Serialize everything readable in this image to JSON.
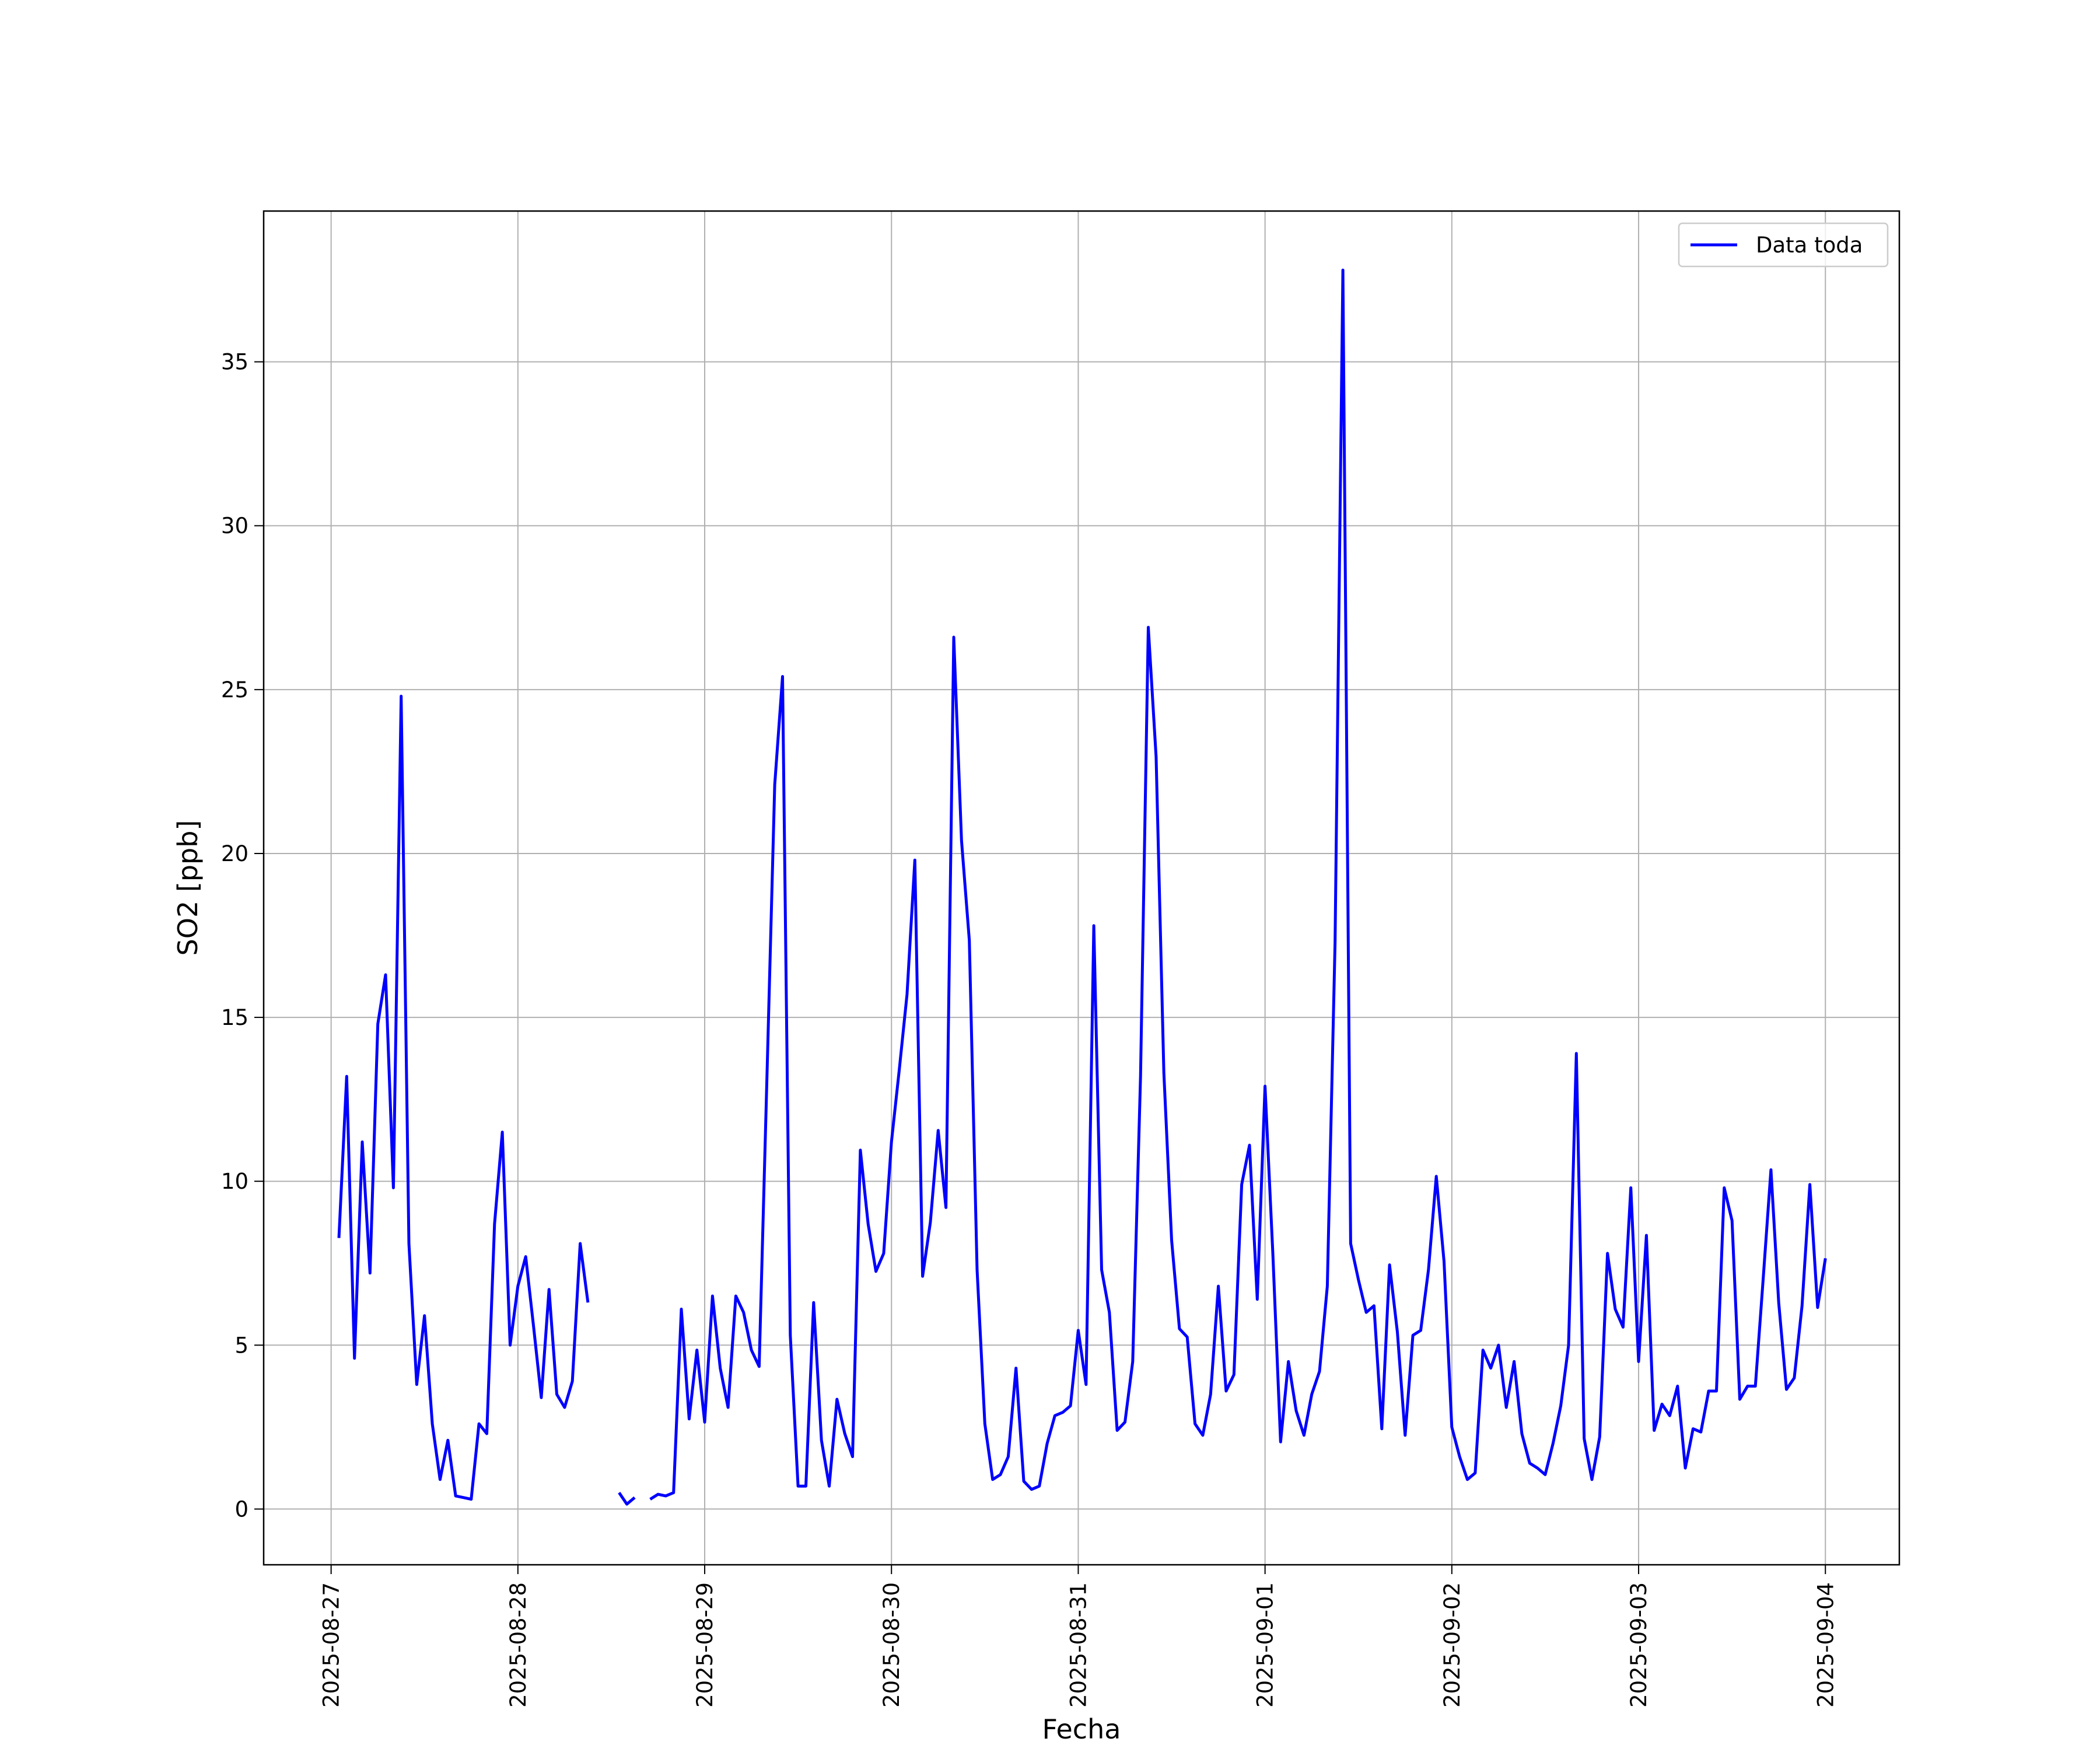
{
  "chart_data": {
    "type": "line",
    "title": "",
    "xlabel": "Fecha",
    "ylabel": "SO2 [ppb]",
    "xlim": [
      "2025-08-26T15:20",
      "2025-09-04T09:30"
    ],
    "ylim": [
      -1.7,
      39.6
    ],
    "grid": true,
    "legend_position": "top-right",
    "x_ticks": [
      "2025-08-27",
      "2025-08-28",
      "2025-08-29",
      "2025-08-30",
      "2025-08-31",
      "2025-09-01",
      "2025-09-02",
      "2025-09-03",
      "2025-09-04"
    ],
    "y_ticks": [
      0,
      5,
      10,
      15,
      20,
      25,
      30,
      35
    ],
    "series": [
      {
        "name": "Data toda",
        "color": "#0000ff",
        "x": [
          "2025-08-27T01:00",
          "2025-08-27T02:00",
          "2025-08-27T03:00",
          "2025-08-27T04:00",
          "2025-08-27T05:00",
          "2025-08-27T06:00",
          "2025-08-27T07:00",
          "2025-08-27T08:00",
          "2025-08-27T09:00",
          "2025-08-27T10:00",
          "2025-08-27T11:00",
          "2025-08-27T12:00",
          "2025-08-27T13:00",
          "2025-08-27T14:00",
          "2025-08-27T15:00",
          "2025-08-27T16:00",
          "2025-08-27T17:00",
          "2025-08-27T18:00",
          "2025-08-27T19:00",
          "2025-08-27T20:00",
          "2025-08-27T21:00",
          "2025-08-27T22:00",
          "2025-08-27T23:00",
          "2025-08-28T00:00",
          "2025-08-28T01:00",
          "2025-08-28T02:00",
          "2025-08-28T03:00",
          "2025-08-28T04:00",
          "2025-08-28T05:00",
          "2025-08-28T06:00",
          "2025-08-28T07:00",
          "2025-08-28T08:00",
          "2025-08-28T09:00",
          "2025-08-28T10:00",
          "2025-08-28T11:00",
          "2025-08-28T12:00",
          "2025-08-28T13:00",
          "2025-08-28T14:00",
          "2025-08-28T15:00",
          "2025-08-28T16:00",
          "2025-08-28T17:00",
          "2025-08-28T18:00",
          "2025-08-28T19:00",
          "2025-08-28T20:00",
          "2025-08-28T21:00",
          "2025-08-28T22:00",
          "2025-08-28T23:00",
          "2025-08-29T00:00",
          "2025-08-29T01:00",
          "2025-08-29T02:00",
          "2025-08-29T03:00",
          "2025-08-29T04:00",
          "2025-08-29T05:00",
          "2025-08-29T06:00",
          "2025-08-29T07:00",
          "2025-08-29T08:00",
          "2025-08-29T09:00",
          "2025-08-29T10:00",
          "2025-08-29T11:00",
          "2025-08-29T12:00",
          "2025-08-29T13:00",
          "2025-08-29T14:00",
          "2025-08-29T15:00",
          "2025-08-29T16:00",
          "2025-08-29T17:00",
          "2025-08-29T18:00",
          "2025-08-29T19:00",
          "2025-08-29T20:00",
          "2025-08-29T21:00",
          "2025-08-29T22:00",
          "2025-08-29T23:00",
          "2025-08-30T00:00",
          "2025-08-30T01:00",
          "2025-08-30T02:00",
          "2025-08-30T03:00",
          "2025-08-30T04:00",
          "2025-08-30T05:00",
          "2025-08-30T06:00",
          "2025-08-30T07:00",
          "2025-08-30T08:00",
          "2025-08-30T09:00",
          "2025-08-30T10:00",
          "2025-08-30T11:00",
          "2025-08-30T12:00",
          "2025-08-30T13:00",
          "2025-08-30T14:00",
          "2025-08-30T15:00",
          "2025-08-30T16:00",
          "2025-08-30T17:00",
          "2025-08-30T18:00",
          "2025-08-30T19:00",
          "2025-08-30T20:00",
          "2025-08-30T21:00",
          "2025-08-30T22:00",
          "2025-08-30T23:00",
          "2025-08-31T00:00",
          "2025-08-31T01:00",
          "2025-08-31T02:00",
          "2025-08-31T03:00",
          "2025-08-31T04:00",
          "2025-08-31T05:00",
          "2025-08-31T06:00",
          "2025-08-31T07:00",
          "2025-08-31T08:00",
          "2025-08-31T09:00",
          "2025-08-31T10:00",
          "2025-08-31T11:00",
          "2025-08-31T12:00",
          "2025-08-31T13:00",
          "2025-08-31T14:00",
          "2025-08-31T15:00",
          "2025-08-31T16:00",
          "2025-08-31T17:00",
          "2025-08-31T18:00",
          "2025-08-31T19:00",
          "2025-08-31T20:00",
          "2025-08-31T21:00",
          "2025-08-31T22:00",
          "2025-08-31T23:00",
          "2025-09-01T00:00",
          "2025-09-01T01:00",
          "2025-09-01T02:00",
          "2025-09-01T03:00",
          "2025-09-01T04:00",
          "2025-09-01T05:00",
          "2025-09-01T06:00",
          "2025-09-01T07:00",
          "2025-09-01T08:00",
          "2025-09-01T09:00",
          "2025-09-01T10:00",
          "2025-09-01T11:00",
          "2025-09-01T12:00",
          "2025-09-01T13:00",
          "2025-09-01T14:00",
          "2025-09-01T15:00",
          "2025-09-01T16:00",
          "2025-09-01T17:00",
          "2025-09-01T18:00",
          "2025-09-01T19:00",
          "2025-09-01T20:00",
          "2025-09-01T21:00",
          "2025-09-01T22:00",
          "2025-09-01T23:00",
          "2025-09-02T00:00",
          "2025-09-02T01:00",
          "2025-09-02T02:00",
          "2025-09-02T03:00",
          "2025-09-02T04:00",
          "2025-09-02T05:00",
          "2025-09-02T06:00",
          "2025-09-02T07:00",
          "2025-09-02T08:00",
          "2025-09-02T09:00",
          "2025-09-02T10:00",
          "2025-09-02T11:00",
          "2025-09-02T12:00",
          "2025-09-02T13:00",
          "2025-09-02T14:00",
          "2025-09-02T15:00",
          "2025-09-02T16:00",
          "2025-09-02T17:00",
          "2025-09-02T18:00",
          "2025-09-02T19:00",
          "2025-09-02T20:00",
          "2025-09-02T21:00",
          "2025-09-02T22:00",
          "2025-09-02T23:00",
          "2025-09-03T00:00",
          "2025-09-03T01:00",
          "2025-09-03T02:00",
          "2025-09-03T03:00",
          "2025-09-03T04:00",
          "2025-09-03T05:00",
          "2025-09-03T06:00",
          "2025-09-03T07:00",
          "2025-09-03T08:00",
          "2025-09-03T09:00",
          "2025-09-03T10:00",
          "2025-09-03T11:00",
          "2025-09-03T12:00",
          "2025-09-03T13:00",
          "2025-09-03T14:00",
          "2025-09-03T15:00",
          "2025-09-03T16:00",
          "2025-09-03T17:00",
          "2025-09-03T18:00",
          "2025-09-03T19:00",
          "2025-09-03T20:00",
          "2025-09-03T21:00",
          "2025-09-03T22:00",
          "2025-09-03T23:00",
          "2025-09-04T00:00"
        ],
        "y": [
          8.27,
          13.2,
          4.6,
          11.2,
          7.2,
          14.8,
          16.3,
          9.8,
          24.8,
          8.1,
          3.8,
          5.9,
          2.6,
          0.9,
          2.1,
          0.4,
          0.35,
          0.3,
          2.6,
          2.3,
          8.7,
          11.5,
          5.0,
          6.8,
          7.7,
          5.6,
          3.4,
          6.7,
          3.5,
          3.1,
          3.9,
          8.1,
          6.3,
          null,
          null,
          null,
          0.5,
          0.15,
          0.35,
          null,
          0.3,
          0.45,
          0.4,
          0.5,
          6.1,
          2.75,
          4.85,
          2.65,
          6.5,
          4.3,
          3.1,
          6.5,
          6.0,
          4.85,
          4.35,
          13.2,
          22.1,
          25.4,
          5.3,
          0.7,
          0.7,
          6.3,
          2.1,
          0.7,
          3.35,
          2.3,
          1.6,
          10.95,
          8.7,
          7.25,
          7.8,
          11.2,
          13.4,
          15.7,
          19.8,
          7.1,
          8.75,
          11.55,
          9.2,
          26.6,
          20.4,
          17.35,
          7.3,
          2.6,
          0.9,
          1.05,
          1.6,
          4.3,
          0.85,
          0.6,
          0.7,
          2.0,
          2.85,
          2.95,
          3.15,
          5.45,
          3.8,
          17.8,
          7.3,
          6.0,
          2.4,
          2.65,
          4.5,
          13.2,
          26.9,
          22.95,
          13.3,
          8.2,
          5.5,
          5.25,
          2.6,
          2.25,
          3.5,
          6.8,
          3.6,
          4.1,
          9.9,
          11.1,
          6.4,
          12.9,
          7.8,
          2.05,
          4.5,
          3.0,
          2.25,
          3.5,
          4.2,
          6.8,
          17.3,
          37.8,
          8.1,
          7.0,
          6.0,
          6.2,
          2.45,
          7.45,
          5.4,
          2.25,
          5.3,
          5.45,
          7.3,
          10.15,
          7.55,
          2.5,
          1.6,
          0.9,
          1.1,
          4.85,
          4.3,
          5.0,
          3.1,
          4.5,
          2.3,
          1.4,
          1.25,
          1.05,
          2.0,
          3.15,
          5.0,
          13.9,
          2.15,
          0.9,
          2.2,
          7.8,
          6.1,
          5.55,
          9.8,
          4.5,
          8.35,
          2.4,
          3.2,
          2.85,
          3.75,
          1.25,
          2.45,
          2.35,
          3.6,
          3.6,
          9.8,
          8.8,
          3.35,
          3.75,
          3.75,
          7.0,
          10.35,
          6.3,
          3.65,
          4.0,
          6.2,
          9.9,
          6.15,
          7.65
        ]
      }
    ]
  }
}
